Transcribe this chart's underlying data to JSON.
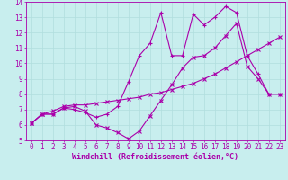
{
  "xlabel": "Windchill (Refroidissement éolien,°C)",
  "ylabel": "",
  "xlim": [
    -0.5,
    23.5
  ],
  "ylim": [
    5,
    14
  ],
  "xticks": [
    0,
    1,
    2,
    3,
    4,
    5,
    6,
    7,
    8,
    9,
    10,
    11,
    12,
    13,
    14,
    15,
    16,
    17,
    18,
    19,
    20,
    21,
    22,
    23
  ],
  "yticks": [
    5,
    6,
    7,
    8,
    9,
    10,
    11,
    12,
    13,
    14
  ],
  "background_color": "#c8eeee",
  "grid_color": "#b0dede",
  "line_color": "#aa00aa",
  "line1_x": [
    0,
    1,
    2,
    3,
    4,
    5,
    6,
    7,
    8,
    9,
    10,
    11,
    12,
    13,
    14,
    15,
    16,
    17,
    18,
    19,
    20,
    21,
    22,
    23
  ],
  "line1_y": [
    6.1,
    6.7,
    6.7,
    7.1,
    7.2,
    6.9,
    6.0,
    5.8,
    5.5,
    5.1,
    5.6,
    6.6,
    7.6,
    8.6,
    9.7,
    10.4,
    10.5,
    11.0,
    11.8,
    12.6,
    9.8,
    9.0,
    8.0,
    8.0
  ],
  "line2_x": [
    0,
    1,
    2,
    3,
    4,
    5,
    6,
    7,
    8,
    9,
    10,
    11,
    12,
    13,
    14,
    15,
    16,
    17,
    18,
    19,
    20,
    21,
    22,
    23
  ],
  "line2_y": [
    6.1,
    6.7,
    6.7,
    7.1,
    7.0,
    6.8,
    6.5,
    6.7,
    7.2,
    8.8,
    10.5,
    11.3,
    13.3,
    10.5,
    10.5,
    13.2,
    12.5,
    13.0,
    13.7,
    13.3,
    10.5,
    9.3,
    8.0,
    8.0
  ],
  "line3_x": [
    0,
    1,
    2,
    3,
    4,
    5,
    6,
    7,
    8,
    9,
    10,
    11,
    12,
    13,
    14,
    15,
    16,
    17,
    18,
    19,
    20,
    21,
    22,
    23
  ],
  "line3_y": [
    6.1,
    6.7,
    6.9,
    7.2,
    7.3,
    7.3,
    7.4,
    7.5,
    7.6,
    7.7,
    7.8,
    8.0,
    8.1,
    8.3,
    8.5,
    8.7,
    9.0,
    9.3,
    9.7,
    10.1,
    10.5,
    10.9,
    11.3,
    11.7
  ],
  "tick_fontsize": 5.5,
  "xlabel_fontsize": 6.0
}
